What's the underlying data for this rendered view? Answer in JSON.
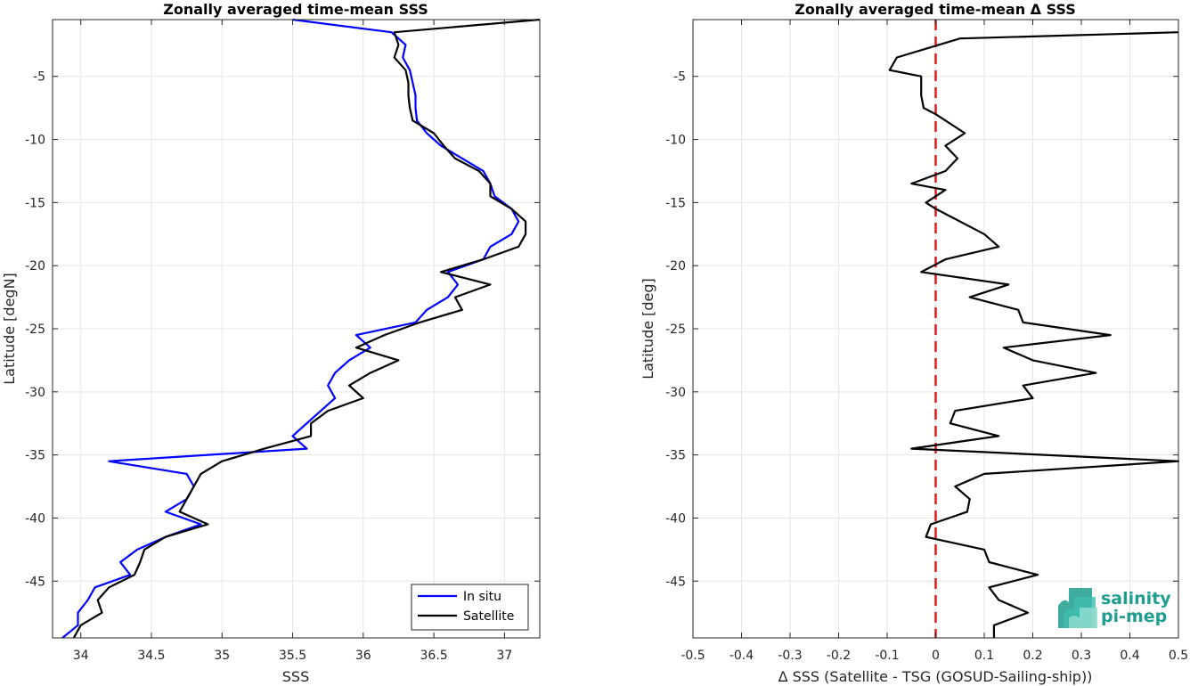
{
  "chart_data": [
    {
      "type": "line",
      "title": "Zonally averaged time-mean SSS",
      "xlabel": "SSS",
      "ylabel": "Latitude [degN]",
      "xlim": [
        33.8,
        37.25
      ],
      "ylim": [
        -49.5,
        -0.5
      ],
      "xticks": [
        34,
        34.5,
        35,
        35.5,
        36,
        36.5,
        37
      ],
      "xtick_labels": [
        "34",
        "34.5",
        "35",
        "35.5",
        "36",
        "36.5",
        "37"
      ],
      "yticks": [
        -5,
        -10,
        -15,
        -20,
        -25,
        -30,
        -35,
        -40,
        -45
      ],
      "ytick_labels": [
        "-5",
        "-10",
        "-15",
        "-20",
        "-25",
        "-30",
        "-35",
        "-40",
        "-45"
      ],
      "grid": true,
      "legend": "bottom-right",
      "series": [
        {
          "name": "In situ",
          "color": "#0000ff",
          "points": [
            [
              35.5,
              -0.5
            ],
            [
              36.2,
              -1.5
            ],
            [
              36.3,
              -2.5
            ],
            [
              36.28,
              -3.5
            ],
            [
              36.33,
              -4.5
            ],
            [
              36.35,
              -5.5
            ],
            [
              36.37,
              -6.5
            ],
            [
              36.37,
              -7.5
            ],
            [
              36.38,
              -8.5
            ],
            [
              36.45,
              -9.5
            ],
            [
              36.55,
              -10.5
            ],
            [
              36.7,
              -11.5
            ],
            [
              36.85,
              -12.5
            ],
            [
              36.9,
              -13.5
            ],
            [
              36.93,
              -14.5
            ],
            [
              37.05,
              -15.5
            ],
            [
              37.1,
              -16.5
            ],
            [
              37.05,
              -17.5
            ],
            [
              36.9,
              -18.5
            ],
            [
              36.85,
              -19.5
            ],
            [
              36.6,
              -20.5
            ],
            [
              36.67,
              -21.5
            ],
            [
              36.6,
              -22.5
            ],
            [
              36.45,
              -23.5
            ],
            [
              36.37,
              -24.5
            ],
            [
              35.95,
              -25.5
            ],
            [
              36.05,
              -26.5
            ],
            [
              35.9,
              -27.5
            ],
            [
              35.8,
              -28.5
            ],
            [
              35.75,
              -29.5
            ],
            [
              35.8,
              -30.5
            ],
            [
              35.7,
              -31.5
            ],
            [
              35.6,
              -32.5
            ],
            [
              35.5,
              -33.5
            ],
            [
              35.6,
              -34.5
            ],
            [
              34.2,
              -35.5
            ],
            [
              34.75,
              -36.5
            ],
            [
              34.8,
              -37.5
            ],
            [
              34.75,
              -38.5
            ],
            [
              34.6,
              -39.5
            ],
            [
              34.85,
              -40.5
            ],
            [
              34.6,
              -41.5
            ],
            [
              34.4,
              -42.5
            ],
            [
              34.28,
              -43.5
            ],
            [
              34.35,
              -44.5
            ],
            [
              34.1,
              -45.5
            ],
            [
              34.05,
              -46.5
            ],
            [
              33.98,
              -47.5
            ],
            [
              33.98,
              -48.5
            ],
            [
              33.87,
              -49.5
            ]
          ]
        },
        {
          "name": "Satellite",
          "color": "#000000",
          "points": [
            [
              37.25,
              -0.5
            ],
            [
              36.22,
              -1.5
            ],
            [
              36.25,
              -2.5
            ],
            [
              36.22,
              -3.5
            ],
            [
              36.3,
              -4.5
            ],
            [
              36.32,
              -5.5
            ],
            [
              36.32,
              -6.5
            ],
            [
              36.33,
              -7.5
            ],
            [
              36.35,
              -8.5
            ],
            [
              36.5,
              -9.5
            ],
            [
              36.57,
              -10.5
            ],
            [
              36.65,
              -11.5
            ],
            [
              36.82,
              -12.5
            ],
            [
              36.9,
              -13.5
            ],
            [
              36.9,
              -14.5
            ],
            [
              37.05,
              -15.5
            ],
            [
              37.15,
              -16.5
            ],
            [
              37.15,
              -17.5
            ],
            [
              37.1,
              -18.5
            ],
            [
              36.85,
              -19.5
            ],
            [
              36.55,
              -20.5
            ],
            [
              36.9,
              -21.5
            ],
            [
              36.65,
              -22.5
            ],
            [
              36.7,
              -23.5
            ],
            [
              36.4,
              -24.5
            ],
            [
              36.15,
              -25.5
            ],
            [
              35.95,
              -26.5
            ],
            [
              36.25,
              -27.5
            ],
            [
              36.05,
              -28.5
            ],
            [
              35.9,
              -29.5
            ],
            [
              36.0,
              -30.5
            ],
            [
              35.75,
              -31.5
            ],
            [
              35.63,
              -32.5
            ],
            [
              35.63,
              -33.5
            ],
            [
              35.3,
              -34.5
            ],
            [
              35.0,
              -35.5
            ],
            [
              34.85,
              -36.5
            ],
            [
              34.8,
              -37.5
            ],
            [
              34.75,
              -38.5
            ],
            [
              34.7,
              -39.5
            ],
            [
              34.9,
              -40.5
            ],
            [
              34.6,
              -41.5
            ],
            [
              34.45,
              -42.5
            ],
            [
              34.42,
              -43.5
            ],
            [
              34.38,
              -44.5
            ],
            [
              34.2,
              -45.5
            ],
            [
              34.12,
              -46.5
            ],
            [
              34.15,
              -47.5
            ],
            [
              34.0,
              -48.5
            ],
            [
              33.95,
              -49.5
            ]
          ]
        }
      ]
    },
    {
      "type": "line",
      "title": "Zonally averaged time-mean Δ SSS",
      "xlabel": "Δ SSS (Satellite - TSG (GOSUD-Sailing-ship))",
      "ylabel": "Latitude [deg]",
      "xlim": [
        -0.5,
        0.5
      ],
      "ylim": [
        -49.5,
        -0.5
      ],
      "xticks": [
        -0.5,
        -0.4,
        -0.3,
        -0.2,
        -0.1,
        0,
        0.1,
        0.2,
        0.3,
        0.4,
        0.5
      ],
      "xtick_labels": [
        "-0.5",
        "-0.4",
        "-0.3",
        "-0.2",
        "-0.1",
        "0",
        "0.1",
        "0.2",
        "0.3",
        "0.4",
        "0.5"
      ],
      "yticks": [
        -5,
        -10,
        -15,
        -20,
        -25,
        -30,
        -35,
        -40,
        -45
      ],
      "ytick_labels": [
        "-5",
        "-10",
        "-15",
        "-20",
        "-25",
        "-30",
        "-35",
        "-40",
        "-45"
      ],
      "grid": true,
      "reference_line": {
        "x": 0,
        "color": "#e31a1c",
        "style": "dashed"
      },
      "series": [
        {
          "color": "#000000",
          "points": [
            [
              0.5,
              -1.5
            ],
            [
              0.05,
              -2.0
            ],
            [
              -0.08,
              -3.5
            ],
            [
              -0.095,
              -4.5
            ],
            [
              -0.03,
              -5.0
            ],
            [
              -0.03,
              -6.5
            ],
            [
              -0.025,
              -7.5
            ],
            [
              0.0,
              -8.0
            ],
            [
              0.06,
              -9.5
            ],
            [
              0.02,
              -10.5
            ],
            [
              0.045,
              -11.5
            ],
            [
              0.02,
              -12.5
            ],
            [
              -0.05,
              -13.5
            ],
            [
              0.02,
              -14.0
            ],
            [
              -0.02,
              -15.0
            ],
            [
              0.0,
              -15.5
            ],
            [
              0.1,
              -17.5
            ],
            [
              0.13,
              -18.5
            ],
            [
              0.02,
              -19.5
            ],
            [
              -0.03,
              -20.5
            ],
            [
              0.15,
              -21.5
            ],
            [
              0.07,
              -22.5
            ],
            [
              0.17,
              -23.5
            ],
            [
              0.18,
              -24.5
            ],
            [
              0.36,
              -25.5
            ],
            [
              0.14,
              -26.5
            ],
            [
              0.2,
              -27.5
            ],
            [
              0.33,
              -28.5
            ],
            [
              0.18,
              -29.5
            ],
            [
              0.2,
              -30.5
            ],
            [
              0.04,
              -31.5
            ],
            [
              0.03,
              -32.5
            ],
            [
              0.13,
              -33.5
            ],
            [
              -0.05,
              -34.5
            ],
            [
              0.5,
              -35.5
            ],
            [
              0.1,
              -36.5
            ],
            [
              0.04,
              -37.5
            ],
            [
              0.07,
              -38.5
            ],
            [
              0.065,
              -39.5
            ],
            [
              -0.01,
              -40.5
            ],
            [
              -0.02,
              -41.5
            ],
            [
              0.1,
              -42.5
            ],
            [
              0.11,
              -43.5
            ],
            [
              0.21,
              -44.5
            ],
            [
              0.11,
              -45.5
            ],
            [
              0.13,
              -46.5
            ],
            [
              0.19,
              -47.5
            ],
            [
              0.12,
              -48.5
            ],
            [
              0.12,
              -49.5
            ]
          ]
        }
      ]
    }
  ],
  "legend_entries": [
    "In situ",
    "Satellite"
  ],
  "logo": {
    "line1": "salinity",
    "line2": "pi-mep"
  }
}
